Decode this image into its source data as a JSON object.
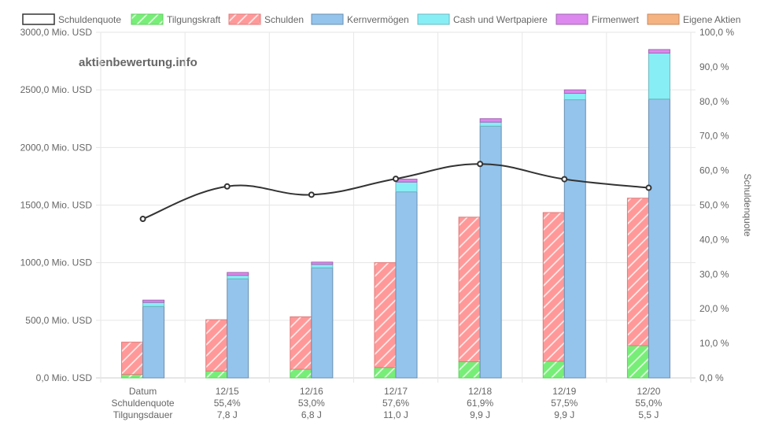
{
  "watermark": "aktienbewertung.info",
  "legend": [
    {
      "key": "schuldenquote",
      "label": "Schuldenquote"
    },
    {
      "key": "tilgungskraft",
      "label": "Tilgungskraft"
    },
    {
      "key": "schulden",
      "label": "Schulden"
    },
    {
      "key": "kernvermoegen",
      "label": "Kernvermögen"
    },
    {
      "key": "cash",
      "label": "Cash und Wertpapiere"
    },
    {
      "key": "firmenwert",
      "label": "Firmenwert"
    },
    {
      "key": "eigene_aktien",
      "label": "Eigene Aktien"
    }
  ],
  "colors": {
    "tilgungskraft": "#77ee77",
    "schulden": "#ff9999",
    "kernvermoegen": "#94c4ec",
    "cash": "#88eef6",
    "firmenwert": "#dd88ee",
    "eigene_aktien": "#f5b382",
    "line": "#333333",
    "grid": "#e6e6e6",
    "text": "#666666"
  },
  "chart_data": {
    "type": "bar",
    "categories": [
      "Datum",
      "12/15",
      "12/16",
      "12/17",
      "12/18",
      "12/19",
      "12/20"
    ],
    "category_rows": [
      [
        "Datum",
        "Schuldenquote",
        "Tilgungsdauer"
      ],
      [
        "12/15",
        "55,4%",
        "7,8 J"
      ],
      [
        "12/16",
        "53,0%",
        "6,8 J"
      ],
      [
        "12/17",
        "57,6%",
        "11,0 J"
      ],
      [
        "12/18",
        "61,9%",
        "9,9 J"
      ],
      [
        "12/19",
        "57,5%",
        "9,9 J"
      ],
      [
        "12/20",
        "55,0%",
        "5,5 J"
      ]
    ],
    "stacks": {
      "left": [
        "tilgungskraft",
        "schulden"
      ],
      "right": [
        "kernvermoegen",
        "cash",
        "firmenwert",
        "eigene_aktien"
      ]
    },
    "series": [
      {
        "key": "tilgungskraft",
        "name": "Tilgungskraft",
        "values": [
          30,
          60,
          75,
          90,
          140,
          145,
          280
        ]
      },
      {
        "key": "schulden",
        "name": "Schulden",
        "values": [
          280,
          445,
          455,
          910,
          1255,
          1290,
          1280
        ]
      },
      {
        "key": "kernvermoegen",
        "name": "Kernvermögen",
        "values": [
          620,
          860,
          955,
          1615,
          2185,
          2415,
          2420
        ]
      },
      {
        "key": "cash",
        "name": "Cash und Wertpapiere",
        "values": [
          35,
          30,
          30,
          85,
          35,
          55,
          400
        ]
      },
      {
        "key": "firmenwert",
        "name": "Firmenwert",
        "values": [
          20,
          25,
          20,
          25,
          30,
          30,
          30
        ]
      },
      {
        "key": "eigene_aktien",
        "name": "Eigene Aktien",
        "values": [
          0,
          0,
          0,
          0,
          0,
          0,
          0
        ]
      }
    ],
    "line_series": {
      "key": "schuldenquote",
      "name": "Schuldenquote",
      "values": [
        46.0,
        55.4,
        53.0,
        57.6,
        61.9,
        57.5,
        55.0
      ]
    },
    "y_left": {
      "min": 0,
      "max": 3000,
      "step": 500,
      "tick_labels": [
        "0,0 Mio. USD",
        "500,0 Mio. USD",
        "1000,0 Mio. USD",
        "1500,0 Mio. USD",
        "2000,0 Mio. USD",
        "2500,0 Mio. USD",
        "3000,0 Mio. USD"
      ]
    },
    "y_right": {
      "min": 0,
      "max": 100,
      "step": 10,
      "label": "Schuldenquote",
      "tick_labels": [
        "0,0 %",
        "10,0 %",
        "20,0 %",
        "30,0 %",
        "40,0 %",
        "50,0 %",
        "60,0 %",
        "70,0 %",
        "80,0 %",
        "90,0 %",
        "100,0 %"
      ]
    },
    "grid": true,
    "legend_position": "top"
  }
}
